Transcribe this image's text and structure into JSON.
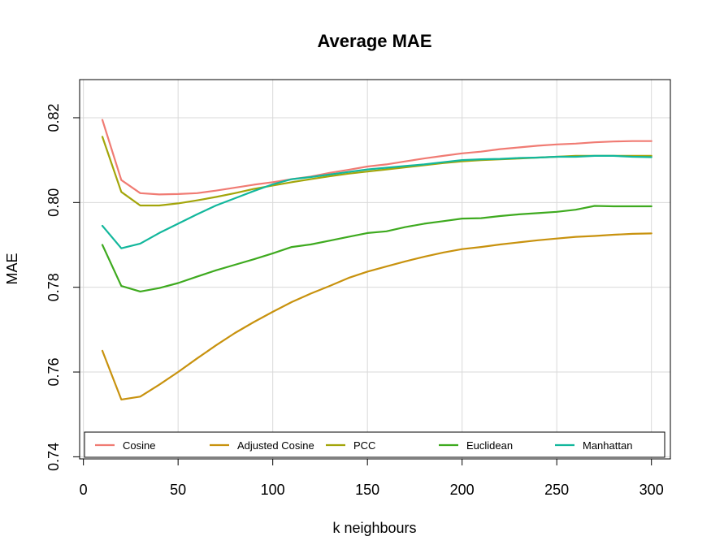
{
  "chart_data": {
    "type": "line",
    "title": "Average MAE",
    "xlabel": "k neighbours",
    "ylabel": "MAE",
    "xlim": [
      -2,
      310
    ],
    "ylim": [
      0.7395,
      0.829
    ],
    "xticks": [
      0,
      50,
      100,
      150,
      200,
      250,
      300
    ],
    "yticks": [
      0.74,
      0.76,
      0.78,
      0.8,
      0.82
    ],
    "xtick_labels": [
      "0",
      "50",
      "100",
      "150",
      "200",
      "250",
      "300"
    ],
    "ytick_labels": [
      "0.74",
      "0.76",
      "0.78",
      "0.80",
      "0.82"
    ],
    "grid": true,
    "legend_position": "bottom",
    "x": [
      10,
      20,
      30,
      40,
      50,
      60,
      70,
      80,
      90,
      100,
      110,
      120,
      130,
      140,
      150,
      160,
      170,
      180,
      190,
      200,
      210,
      220,
      230,
      240,
      250,
      260,
      270,
      280,
      290,
      300
    ],
    "series": [
      {
        "name": "Cosine",
        "color": "#f07b73",
        "values": [
          0.8195,
          0.8053,
          0.8022,
          0.8019,
          0.802,
          0.8022,
          0.8028,
          0.8035,
          0.8042,
          0.8048,
          0.8055,
          0.8061,
          0.807,
          0.8077,
          0.8085,
          0.809,
          0.8097,
          0.8104,
          0.811,
          0.8116,
          0.812,
          0.8126,
          0.813,
          0.8134,
          0.8137,
          0.8139,
          0.8142,
          0.8144,
          0.8145,
          0.8145
        ]
      },
      {
        "name": "Adjusted Cosine",
        "color": "#c8920e",
        "values": [
          0.765,
          0.7535,
          0.7542,
          0.757,
          0.76,
          0.7632,
          0.7663,
          0.7692,
          0.7718,
          0.7742,
          0.7765,
          0.7785,
          0.7803,
          0.7822,
          0.7837,
          0.7849,
          0.7861,
          0.7872,
          0.7882,
          0.789,
          0.7895,
          0.7901,
          0.7906,
          0.7911,
          0.7915,
          0.7919,
          0.7921,
          0.7924,
          0.7926,
          0.7927
        ]
      },
      {
        "name": "PCC",
        "color": "#a3a50a",
        "values": [
          0.8155,
          0.8025,
          0.7993,
          0.7993,
          0.7998,
          0.8005,
          0.8013,
          0.8022,
          0.8032,
          0.804,
          0.8048,
          0.8055,
          0.8062,
          0.8068,
          0.8073,
          0.8078,
          0.8083,
          0.8088,
          0.8093,
          0.8097,
          0.81,
          0.8102,
          0.8104,
          0.8106,
          0.8108,
          0.811,
          0.811,
          0.811,
          0.811,
          0.811
        ]
      },
      {
        "name": "Euclidean",
        "color": "#3eaa1f",
        "values": [
          0.79,
          0.7803,
          0.779,
          0.7798,
          0.781,
          0.7825,
          0.784,
          0.7853,
          0.7866,
          0.788,
          0.7895,
          0.7901,
          0.791,
          0.7919,
          0.7928,
          0.7932,
          0.7942,
          0.795,
          0.7956,
          0.7962,
          0.7963,
          0.7968,
          0.7972,
          0.7975,
          0.7978,
          0.7983,
          0.7992,
          0.7991,
          0.7991,
          0.7991
        ]
      },
      {
        "name": "Manhattan",
        "color": "#12b79c",
        "values": [
          0.7945,
          0.7892,
          0.7903,
          0.7928,
          0.795,
          0.7972,
          0.7993,
          0.801,
          0.8027,
          0.8043,
          0.8055,
          0.806,
          0.8066,
          0.8072,
          0.8078,
          0.8082,
          0.8086,
          0.809,
          0.8095,
          0.81,
          0.8102,
          0.8103,
          0.8105,
          0.8106,
          0.8108,
          0.8108,
          0.811,
          0.811,
          0.8108,
          0.8107
        ]
      }
    ]
  }
}
